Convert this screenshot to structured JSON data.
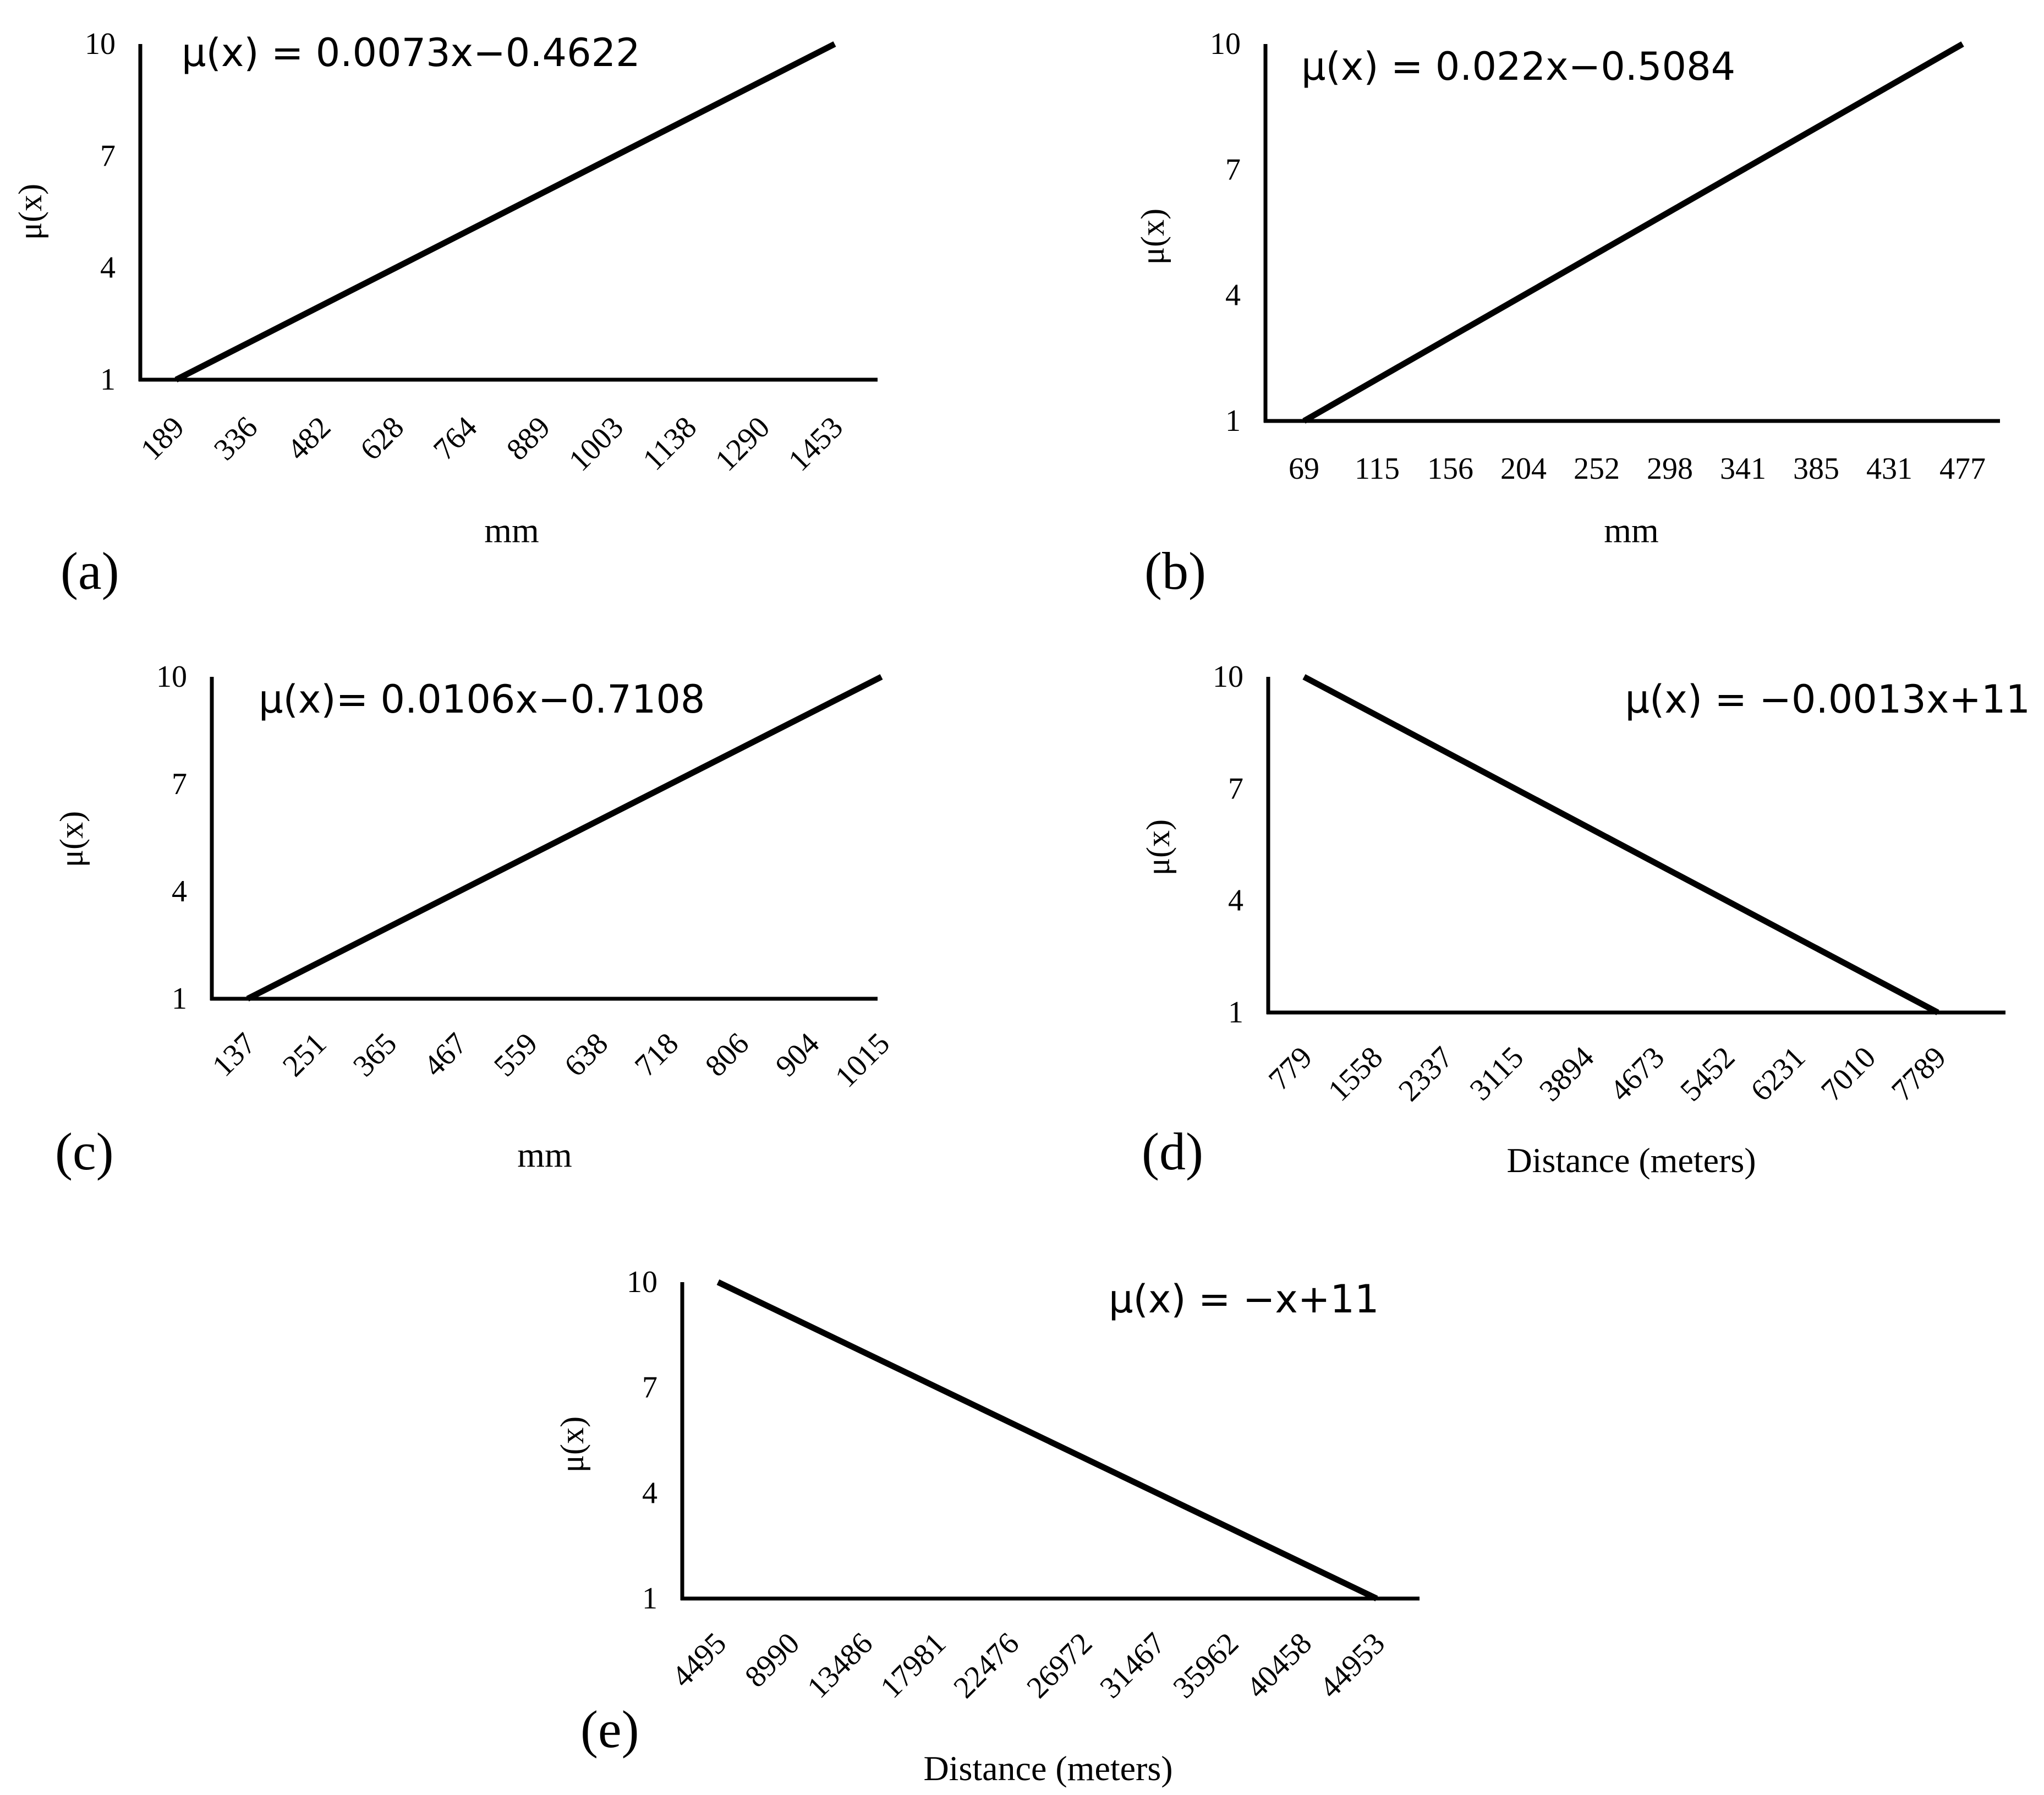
{
  "chart_data": [
    {
      "panel": "(a)",
      "type": "line",
      "equation": "μ(x) =  0.0073x−0.4622",
      "xlabel": "mm",
      "ylabel": "μ(x)",
      "x_ticks": [
        "189",
        "336",
        "482",
        "628",
        "764",
        "889",
        "1003",
        "1138",
        "1290",
        "1453"
      ],
      "y_ticks": [
        1,
        4,
        7,
        10
      ],
      "ylim": [
        1,
        10
      ],
      "series": [
        {
          "x": [
            189,
            336,
            482,
            628,
            764,
            889,
            1003,
            1138,
            1290,
            1453
          ],
          "values": [
            1,
            2,
            3,
            4,
            5,
            6,
            7,
            8,
            9,
            10
          ]
        }
      ]
    },
    {
      "panel": "(b)",
      "type": "line",
      "equation": "μ(x) =  0.022x−0.5084",
      "xlabel": "mm",
      "ylabel": "μ(x)",
      "x_ticks": [
        "69",
        "115",
        "156",
        "204",
        "252",
        "298",
        "341",
        "385",
        "431",
        "477"
      ],
      "y_ticks": [
        1,
        4,
        7,
        10
      ],
      "ylim": [
        1,
        10
      ],
      "series": [
        {
          "x": [
            69,
            115,
            156,
            204,
            252,
            298,
            341,
            385,
            431,
            477
          ],
          "values": [
            1,
            2,
            3,
            4,
            5,
            6,
            7,
            8,
            9,
            10
          ]
        }
      ]
    },
    {
      "panel": "(c)",
      "type": "line",
      "equation": "μ(x)= 0.0106x−0.7108",
      "xlabel": "mm",
      "ylabel": "μ(x)",
      "x_ticks": [
        "137",
        "251",
        "365",
        "467",
        "559",
        "638",
        "718",
        "806",
        "904",
        "1015"
      ],
      "y_ticks": [
        1,
        4,
        7,
        10
      ],
      "ylim": [
        1,
        10
      ],
      "series": [
        {
          "x": [
            137,
            251,
            365,
            467,
            559,
            638,
            718,
            806,
            904,
            1015
          ],
          "values": [
            1,
            2,
            3,
            4,
            5,
            6,
            7,
            8,
            9,
            10
          ]
        }
      ]
    },
    {
      "panel": "(d)",
      "type": "line",
      "equation": "μ(x) =  −0.0013x+11",
      "xlabel": "Distance (meters)",
      "ylabel": "μ(x)",
      "x_ticks": [
        "779",
        "1558",
        "2337",
        "3115",
        "3894",
        "4673",
        "5452",
        "6231",
        "7010",
        "7789"
      ],
      "y_ticks": [
        1,
        4,
        7,
        10
      ],
      "ylim": [
        1,
        10
      ],
      "series": [
        {
          "x": [
            779,
            1558,
            2337,
            3115,
            3894,
            4673,
            5452,
            6231,
            7010,
            7789
          ],
          "values": [
            10,
            9,
            8,
            7,
            6,
            5,
            4,
            3,
            2,
            1
          ]
        }
      ]
    },
    {
      "panel": "(e)",
      "type": "line",
      "equation": "μ(x) =  −x+11",
      "xlabel": "Distance (meters)",
      "ylabel": "μ(x)",
      "x_ticks": [
        "4495",
        "8990",
        "13486",
        "17981",
        "22476",
        "26972",
        "31467",
        "35962",
        "40458",
        "44953"
      ],
      "y_ticks": [
        1,
        4,
        7,
        10
      ],
      "ylim": [
        1,
        10
      ],
      "series": [
        {
          "x": [
            4495,
            8990,
            13486,
            17981,
            22476,
            26972,
            31467,
            35962,
            40458,
            44953
          ],
          "values": [
            10,
            9,
            8,
            7,
            6,
            5,
            4,
            3,
            2,
            1
          ]
        }
      ]
    }
  ]
}
